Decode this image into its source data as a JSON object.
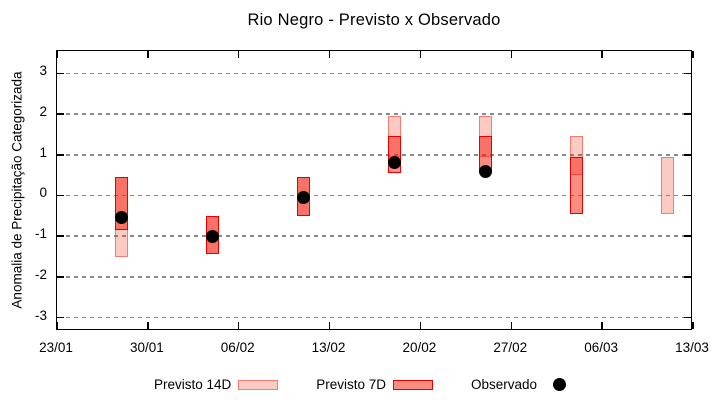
{
  "title": "Rio Negro - Previsto x Observado",
  "y_axis": {
    "label": "Anomalia de Precipitação Categorizada",
    "tick_labels": [
      "3",
      "2",
      "1",
      "0",
      "-1",
      "-2",
      "-3"
    ],
    "tick_values": [
      3,
      2,
      1,
      0,
      -1,
      -2,
      -3
    ]
  },
  "x_axis": {
    "tick_labels": [
      "23/01",
      "30/01",
      "06/02",
      "13/02",
      "20/02",
      "27/02",
      "06/03",
      "13/03"
    ],
    "tick_interval_days": 7
  },
  "legend": {
    "previsto_14d_label": "Previsto 14D",
    "previsto_7d_label": "Previsto 7D",
    "observado_label": "Observado"
  },
  "colors": {
    "previsto_14d_fill": "rgba(242,60,35,0.27)",
    "previsto_14d_border": "rgba(240,60,45,0.55)",
    "previsto_7d_fill": "rgba(245,25,10,0.5)",
    "previsto_7d_border": "#e60000",
    "observado": "#000000",
    "grid": "#8a8a8a",
    "axis": "#000000"
  },
  "chart_data": {
    "type": "candlestick-range",
    "title": "Rio Negro - Previsto x Observado",
    "ylabel": "Anomalia de Precipitação Categorizada",
    "ylim": [
      -3.33,
      3.55
    ],
    "yticks": [
      3,
      2,
      1,
      0,
      -1,
      -2,
      -3
    ],
    "x_tick_labels": [
      "23/01",
      "30/01",
      "06/02",
      "13/02",
      "20/02",
      "27/02",
      "06/03",
      "13/03"
    ],
    "grid": "dashed-horizontal",
    "legend_position": "bottom",
    "series": [
      {
        "name": "Previsto 14D",
        "type": "range-bar"
      },
      {
        "name": "Previsto 7D",
        "type": "range-bar"
      },
      {
        "name": "Observado",
        "type": "point"
      }
    ],
    "weeks": [
      {
        "date": "28/01",
        "day_offset": 5,
        "previsto_14d": [
          -1.5,
          0.45
        ],
        "previsto_7d": [
          -0.85,
          0.45
        ],
        "observado": -0.55
      },
      {
        "date": "04/02",
        "day_offset": 12,
        "previsto_14d": [
          -1.45,
          -0.5
        ],
        "previsto_7d": [
          -1.45,
          -0.5
        ],
        "observado": -1.0
      },
      {
        "date": "11/02",
        "day_offset": 19,
        "previsto_14d": [
          -0.5,
          0.45
        ],
        "previsto_7d": [
          -0.5,
          0.45
        ],
        "observado": -0.05
      },
      {
        "date": "18/02",
        "day_offset": 26,
        "previsto_14d": [
          0.95,
          1.95
        ],
        "previsto_7d": [
          0.55,
          1.45
        ],
        "observado": 0.8
      },
      {
        "date": "25/02",
        "day_offset": 33,
        "previsto_14d": [
          0.95,
          1.95
        ],
        "previsto_7d": [
          0.55,
          1.45
        ],
        "observado": 0.6
      },
      {
        "date": "04/03",
        "day_offset": 40,
        "previsto_14d": [
          0.5,
          1.45
        ],
        "previsto_7d": [
          -0.45,
          0.95
        ],
        "observado": null
      },
      {
        "date": "11/03",
        "day_offset": 47,
        "previsto_14d": [
          -0.45,
          0.95
        ],
        "previsto_7d": null,
        "observado": null
      }
    ]
  }
}
